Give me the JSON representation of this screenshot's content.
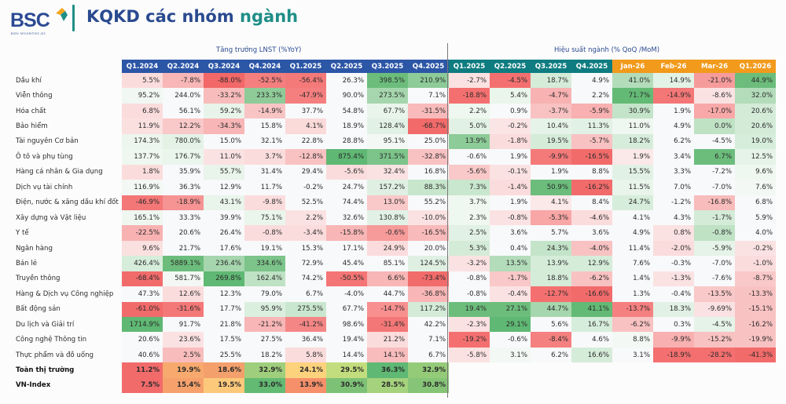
{
  "header": {
    "logo_text": "BSC",
    "logo_subtitle": "BIDV SECURITIES JSC",
    "title_main": "KQKD các nhóm ",
    "title_accent": "ngành"
  },
  "groups": {
    "lnst_title": "Tăng trưởng LNST  (%YoY)",
    "perf_title": "Hiệu suất ngành (% QoQ /MoM)"
  },
  "columns": {
    "lnst": [
      "Q1.2024",
      "Q2.2024",
      "Q3.2024",
      "Q4.2024",
      "Q1.2025",
      "Q2.2025",
      "Q3.2025",
      "Q4.2025"
    ],
    "perf_quarter": [
      "Q1.2025",
      "Q2.2025",
      "Q3.2025",
      "Q4.2025"
    ],
    "perf_month": [
      "Jan-26",
      "Feb-26",
      "Mar-26",
      "Q1.2026"
    ]
  },
  "colors": {
    "lnst_header": "#2c56a6",
    "perf_header": "#0e7c80",
    "month_header": "#f29a1c",
    "positive": "#57b46d",
    "negative": "#f2676a",
    "neutral": "#f8f9fb"
  },
  "rows": [
    {
      "label": "Dầu khí",
      "lnst": [
        "5.5%",
        "-7.8%",
        "-88.0%",
        "-52.5%",
        "-56.4%",
        "26.3%",
        "398.5%",
        "210.9%"
      ],
      "perf": [
        "-2.7%",
        "-4.5%",
        "18.7%",
        "4.9%",
        "41.0%",
        "14.9%",
        "-21.0%",
        "44.9%"
      ]
    },
    {
      "label": "Viễn thông",
      "lnst": [
        "95.2%",
        "244.0%",
        "-33.2%",
        "233.3%",
        "-47.9%",
        "90.0%",
        "273.5%",
        "7.1%"
      ],
      "perf": [
        "-18.8%",
        "5.4%",
        "-4.7%",
        "2.2%",
        "71.7%",
        "-14.9%",
        "-8.6%",
        "32.0%"
      ]
    },
    {
      "label": "Hóa chất",
      "lnst": [
        "6.8%",
        "56.1%",
        "59.2%",
        "-14.9%",
        "37.7%",
        "54.8%",
        "67.7%",
        "-31.5%"
      ],
      "perf": [
        "2.2%",
        "0.9%",
        "-3.7%",
        "-5.9%",
        "30.9%",
        "1.9%",
        "-17.0%",
        "20.6%"
      ]
    },
    {
      "label": "Bảo hiểm",
      "lnst": [
        "11.9%",
        "12.2%",
        "-34.3%",
        "15.8%",
        "4.1%",
        "18.9%",
        "128.4%",
        "-68.7%"
      ],
      "perf": [
        "5.0%",
        "-0.2%",
        "10.4%",
        "11.3%",
        "11.0%",
        "4.9%",
        "0.0%",
        "20.6%"
      ]
    },
    {
      "label": "Tài nguyên Cơ bản",
      "lnst": [
        "174.3%",
        "780.0%",
        "15.0%",
        "32.1%",
        "22.8%",
        "28.8%",
        "95.1%",
        "25.0%"
      ],
      "perf": [
        "13.9%",
        "-1.8%",
        "19.5%",
        "-5.7%",
        "18.2%",
        "6.2%",
        "-4.5%",
        "19.0%"
      ]
    },
    {
      "label": "Ô tô và phụ tùng",
      "lnst": [
        "137.7%",
        "176.7%",
        "11.0%",
        "3.7%",
        "-12.8%",
        "875.4%",
        "371.5%",
        "-32.8%"
      ],
      "perf": [
        "-0.6%",
        "1.9%",
        "-9.9%",
        "-16.5%",
        "1.9%",
        "3.4%",
        "6.7%",
        "12.5%"
      ]
    },
    {
      "label": "Hàng cá nhân & Gia dụng",
      "lnst": [
        "1.8%",
        "35.9%",
        "55.7%",
        "31.4%",
        "29.4%",
        "-5.6%",
        "32.4%",
        "16.8%"
      ],
      "perf": [
        "-5.6%",
        "-0.1%",
        "1.9%",
        "8.8%",
        "15.5%",
        "3.3%",
        "-7.2%",
        "9.6%"
      ]
    },
    {
      "label": "Dịch vụ tài chính",
      "lnst": [
        "116.9%",
        "36.3%",
        "12.9%",
        "11.7%",
        "-0.2%",
        "24.7%",
        "157.2%",
        "88.3%"
      ],
      "perf": [
        "7.3%",
        "-1.4%",
        "50.9%",
        "-16.2%",
        "11.5%",
        "7.0%",
        "-7.0%",
        "7.6%"
      ]
    },
    {
      "label": "Điện, nước & xăng dầu khí đốt",
      "lnst": [
        "-46.9%",
        "-18.9%",
        "43.1%",
        "-9.8%",
        "52.5%",
        "74.4%",
        "13.0%",
        "55.2%"
      ],
      "perf": [
        "3.7%",
        "1.9%",
        "4.1%",
        "8.4%",
        "24.7%",
        "-1.2%",
        "-16.8%",
        "6.8%"
      ]
    },
    {
      "label": "Xây dựng và Vật liệu",
      "lnst": [
        "165.1%",
        "33.3%",
        "39.9%",
        "75.1%",
        "2.2%",
        "32.6%",
        "130.8%",
        "-10.0%"
      ],
      "perf": [
        "2.3%",
        "-0.8%",
        "-5.3%",
        "-4.6%",
        "4.1%",
        "4.3%",
        "-1.7%",
        "5.9%"
      ]
    },
    {
      "label": "Y tế",
      "lnst": [
        "-22.5%",
        "20.6%",
        "26.4%",
        "-0.8%",
        "-3.4%",
        "-15.8%",
        "-0.6%",
        "-16.5%"
      ],
      "perf": [
        "2.5%",
        "3.6%",
        "5.7%",
        "3.6%",
        "4.9%",
        "0.8%",
        "-0.8%",
        "4.0%"
      ]
    },
    {
      "label": "Ngân hàng",
      "lnst": [
        "9.6%",
        "21.7%",
        "17.6%",
        "19.1%",
        "15.3%",
        "17.1%",
        "24.9%",
        "20.0%"
      ],
      "perf": [
        "5.3%",
        "0.4%",
        "24.3%",
        "-4.0%",
        "11.4%",
        "-2.0%",
        "-5.9%",
        "-0.2%"
      ]
    },
    {
      "label": "Bán lẻ",
      "lnst": [
        "426.4%",
        "5889.1%",
        "236.4%",
        "334.6%",
        "72.9%",
        "45.4%",
        "85.1%",
        "124.5%"
      ],
      "perf": [
        "-3.2%",
        "13.5%",
        "13.9%",
        "12.9%",
        "7.6%",
        "-0.3%",
        "-7.0%",
        "-1.0%"
      ]
    },
    {
      "label": "Truyền thông",
      "lnst": [
        "-68.4%",
        "581.7%",
        "269.8%",
        "162.4%",
        "74.2%",
        "-50.5%",
        "6.6%",
        "-73.4%"
      ],
      "perf": [
        "-0.8%",
        "-1.7%",
        "18.8%",
        "-6.2%",
        "1.4%",
        "-1.3%",
        "-7.6%",
        "-8.7%"
      ]
    },
    {
      "label": "Hàng & Dịch vụ Công nghiệp",
      "lnst": [
        "47.3%",
        "12.6%",
        "12.3%",
        "79.0%",
        "6.7%",
        "-4.0%",
        "44.7%",
        "-36.8%"
      ],
      "perf": [
        "-0.8%",
        "-0.4%",
        "-12.7%",
        "-16.6%",
        "1.3%",
        "-0.4%",
        "-13.5%",
        "-13.3%"
      ]
    },
    {
      "label": "Bất động sản",
      "lnst": [
        "-61.0%",
        "-31.6%",
        "17.7%",
        "95.9%",
        "275.5%",
        "67.7%",
        "-14.7%",
        "117.2%"
      ],
      "perf": [
        "19.4%",
        "27.1%",
        "44.7%",
        "41.1%",
        "-13.7%",
        "18.3%",
        "-9.69%",
        "-15.1%"
      ]
    },
    {
      "label": "Du lịch và Giải trí",
      "lnst": [
        "1714.9%",
        "91.7%",
        "21.8%",
        "-21.2%",
        "-41.2%",
        "98.6%",
        "-31.4%",
        "42.2%"
      ],
      "perf": [
        "-2.3%",
        "29.1%",
        "5.6%",
        "16.7%",
        "-6.2%",
        "0.3%",
        "-4.5%",
        "-16.2%"
      ]
    },
    {
      "label": "Công nghệ Thông tin",
      "lnst": [
        "20.6%",
        "23.6%",
        "17.5%",
        "27.5%",
        "36.4%",
        "19.4%",
        "21.2%",
        "7.1%"
      ],
      "perf": [
        "-19.2%",
        "-0.6%",
        "-8.4%",
        "4.6%",
        "8.8%",
        "-9.9%",
        "-15.2%",
        "-19.9%"
      ]
    },
    {
      "label": "Thực phẩm và đồ uống",
      "lnst": [
        "40.6%",
        "2.5%",
        "25.5%",
        "18.2%",
        "5.8%",
        "14.4%",
        "14.1%",
        "6.7%"
      ],
      "perf": [
        "-5.8%",
        "3.1%",
        "6.2%",
        "16.6%",
        "3.1%",
        "-18.9%",
        "-28.2%",
        "-41.3%"
      ]
    }
  ],
  "totals": [
    {
      "label": "Toàn thị trường",
      "lnst": [
        "11.2%",
        "19.9%",
        "18.6%",
        "32.9%",
        "24.1%",
        "29.5%",
        "36.3%",
        "32.9%"
      ],
      "bg": [
        "#f26b6b",
        "#f7a96e",
        "#f4a06c",
        "#9fcf7c",
        "#fdd27d",
        "#c2dd7d",
        "#5fb873",
        "#94cb79"
      ]
    },
    {
      "label": "VN-Index",
      "lnst": [
        "7.5%",
        "15.4%",
        "19.5%",
        "33.0%",
        "13.9%",
        "30.9%",
        "28.5%",
        "30.8%"
      ],
      "bg": [
        "#f26b6b",
        "#f6a16c",
        "#fcc97b",
        "#63ba73",
        "#f5906a",
        "#7dc176",
        "#a5d37d",
        "#86c577"
      ]
    }
  ],
  "cell_bg": {
    "lnst": [
      [
        "#fbdcdc",
        "#f8b6b6",
        "#f26767",
        "#f57e7e",
        "#f47979",
        "#f8f9fb",
        "#6cbd7c",
        "#8dcb98"
      ],
      [
        "#f1f7f3",
        "#f8f9fb",
        "#f8bcbc",
        "#8fcb99",
        "#f57f7f",
        "#f8f9fb",
        "#a6d6ad",
        "#f8f9fb"
      ],
      [
        "#fbdcdc",
        "#f8f9fb",
        "#e8f4ea",
        "#f9c4c4",
        "#f8f9fb",
        "#f8f9fb",
        "#e9f4eb",
        "#f8baba"
      ],
      [
        "#fbe0e0",
        "#f9c8c8",
        "#f8b6b6",
        "#f8f9fb",
        "#fbdada",
        "#f8f9fb",
        "#e2f1e5",
        "#f26a6a"
      ],
      [
        "#ecf6ee",
        "#e4f2e6",
        "#f8f9fb",
        "#f8f9fb",
        "#f8f9fb",
        "#f8f9fb",
        "#f3f8f4",
        "#f8f9fb"
      ],
      [
        "#eef7f0",
        "#eaf5ec",
        "#fbe2e2",
        "#fbdcdc",
        "#f9c2c2",
        "#5fb873",
        "#7cc48a",
        "#f9c2c2"
      ],
      [
        "#fbdcdc",
        "#f8f9fb",
        "#e9f4eb",
        "#f8f9fb",
        "#f8f9fb",
        "#fbdcdc",
        "#fbe2e2",
        "#f8f9fb"
      ],
      [
        "#f3f8f4",
        "#f8f9fb",
        "#f8f9fb",
        "#f8f9fb",
        "#f8f9fb",
        "#f8f9fb",
        "#dff0e2",
        "#c7e6cc"
      ],
      [
        "#f47777",
        "#f69393",
        "#e9f4eb",
        "#fbdcdc",
        "#f8f9fb",
        "#f8f9fb",
        "#f9c8c8",
        "#f8f9fb"
      ],
      [
        "#eef7f0",
        "#f8f9fb",
        "#f8f9fb",
        "#eaf5ec",
        "#fbe2e2",
        "#f8f9fb",
        "#e2f1e5",
        "#fbe2e2"
      ],
      [
        "#f8b2b2",
        "#f8f9fb",
        "#f8f9fb",
        "#fbdcdc",
        "#fbdcdc",
        "#f8b6b6",
        "#f79a9a",
        "#f8baba"
      ],
      [
        "#fbe0e0",
        "#f8f9fb",
        "#f8f9fb",
        "#f8f9fb",
        "#f8f9fb",
        "#f8f9fb",
        "#fbdcdc",
        "#f8f9fb"
      ],
      [
        "#d7eddb",
        "#6cbd7c",
        "#a6d6ad",
        "#7cc48a",
        "#f8f9fb",
        "#f8f9fb",
        "#f8f9fb",
        "#dff0e2"
      ],
      [
        "#f26b6b",
        "#f3f8f4",
        "#5fb873",
        "#bfe2c5",
        "#f8f9fb",
        "#f47575",
        "#f8b6b6",
        "#f26b6b"
      ],
      [
        "#f8f9fb",
        "#fbdcdc",
        "#f8f9fb",
        "#f8f9fb",
        "#f8f9fb",
        "#f8f9fb",
        "#f8f9fb",
        "#f8b6b6"
      ],
      [
        "#f26b6b",
        "#f47878",
        "#f8f9fb",
        "#dbefdf",
        "#c9e7ce",
        "#f8f9fb",
        "#f89090",
        "#d4ebd8"
      ],
      [
        "#5fb873",
        "#f8f9fb",
        "#f8f9fb",
        "#f8b6b6",
        "#f58686",
        "#f8f9fb",
        "#f47777",
        "#f8f9fb"
      ],
      [
        "#f8f9fb",
        "#fbe2e2",
        "#f8f9fb",
        "#f8f9fb",
        "#f8f9fb",
        "#f8f9fb",
        "#fbdcdc",
        "#f8f9fb"
      ],
      [
        "#f8f9fb",
        "#f8bcbc",
        "#f8f9fb",
        "#f8f9fb",
        "#fbdcdc",
        "#f8f9fb",
        "#f8bcbc",
        "#f8f9fb"
      ]
    ],
    "perf": [
      [
        "#fbe2e2",
        "#f47070",
        "#d5ecd9",
        "#f8f9fb",
        "#b3dcba",
        "#e3f2e6",
        "#f69b9b",
        "#6cbd7c"
      ],
      [
        "#f47070",
        "#eaf5ec",
        "#f8b2b2",
        "#f8f9fb",
        "#63ba75",
        "#f47777",
        "#fbe2e2",
        "#b3dcba"
      ],
      [
        "#eef7f0",
        "#f8f9fb",
        "#f9c2c2",
        "#f8b0b0",
        "#c4e4c9",
        "#f8f9fb",
        "#f8a8a8",
        "#d4ebd8"
      ],
      [
        "#e2f1e5",
        "#fbe4e4",
        "#e6f3e8",
        "#e2f1e5",
        "#eef7f0",
        "#f8f9fb",
        "#bfe2c5",
        "#d4ebd8"
      ],
      [
        "#8dcb98",
        "#fbdcdc",
        "#d5ecd9",
        "#f9c2c2",
        "#d7eddb",
        "#f8f9fb",
        "#f8f9fb",
        "#d7eddb"
      ],
      [
        "#f8f9fb",
        "#f8f9fb",
        "#f47a7a",
        "#f26b6b",
        "#fbe8e8",
        "#f8f9fb",
        "#6cbd7c",
        "#e6f3e8"
      ],
      [
        "#f9c8c8",
        "#fbe2e2",
        "#f8f9fb",
        "#f8f9fb",
        "#e2f1e5",
        "#f8f9fb",
        "#f8f9fb",
        "#eef7f0"
      ],
      [
        "#c9e7ce",
        "#fbdcdc",
        "#6cbd7c",
        "#f26b6b",
        "#e9f4eb",
        "#f8f9fb",
        "#f8f9fb",
        "#f3f8f4"
      ],
      [
        "#eef7f0",
        "#f8f9fb",
        "#fbe8e8",
        "#f8f9fb",
        "#d7eddb",
        "#f8f9fb",
        "#f8bcbc",
        "#f8f9fb"
      ],
      [
        "#eef7f0",
        "#fbe2e2",
        "#f8a6a6",
        "#fbdcdc",
        "#f8f9fb",
        "#f8f9fb",
        "#d4ebd8",
        "#f8f9fb"
      ],
      [
        "#e2f1e5",
        "#f8f9fb",
        "#f8f9fb",
        "#f8f9fb",
        "#f8f9fb",
        "#fbe2e2",
        "#bfe2c5",
        "#f8f9fb"
      ],
      [
        "#d4ebd8",
        "#f8f9fb",
        "#c4e4c9",
        "#f9c2c2",
        "#f8f9fb",
        "#fbdcdc",
        "#e6f3e8",
        "#fbe2e2"
      ],
      [
        "#fbe2e2",
        "#b3dcba",
        "#d5ecd9",
        "#d5ecd9",
        "#f8f9fb",
        "#f8f9fb",
        "#f8f9fb",
        "#fbdcdc"
      ],
      [
        "#f8f9fb",
        "#f9c8c8",
        "#d5ecd9",
        "#f9c2c2",
        "#f8f9fb",
        "#fbe2e2",
        "#f8f9fb",
        "#f9c8c8"
      ],
      [
        "#f8f9fb",
        "#fbe2e2",
        "#f47070",
        "#f26b6b",
        "#f8f9fb",
        "#f8f9fb",
        "#f9c8c8",
        "#f9c2c2"
      ],
      [
        "#6cbd7c",
        "#6cbd7c",
        "#a6d6ad",
        "#63ba75",
        "#f58080",
        "#e2f1e5",
        "#fbe2e2",
        "#f9c2c2"
      ],
      [
        "#fbe2e2",
        "#5fb873",
        "#f8f9fb",
        "#d7eddb",
        "#f9c2c2",
        "#f8f9fb",
        "#e6f3e8",
        "#f9c2c2"
      ],
      [
        "#f47070",
        "#f8f9fb",
        "#f58080",
        "#f8f9fb",
        "#f3f8f4",
        "#f8b0b0",
        "#f9c2c2",
        "#f9c2c2"
      ],
      [
        "#fbe2e2",
        "#f3f8f4",
        "#f8f9fb",
        "#d5ecd9",
        "#f8f9fb",
        "#f47070",
        "#f47070",
        "#f26b6b"
      ]
    ]
  }
}
